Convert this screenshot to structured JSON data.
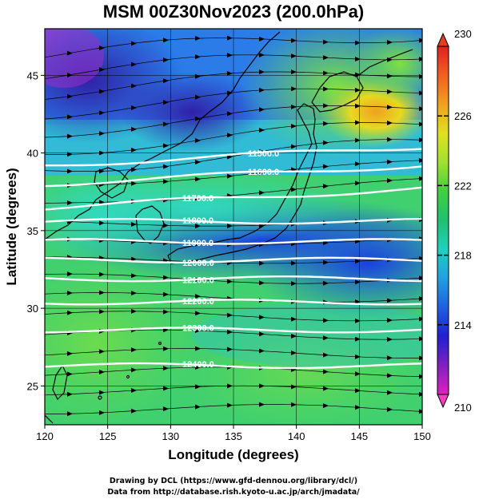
{
  "figure": {
    "title": "MSM 00Z30Nov2023 (200.0hPa)",
    "xlabel": "Longitude (degrees)",
    "ylabel": "Latitude  (degrees)",
    "credit_line1": "Drawing by DCL (https://www.gfd-dennou.org/library/dcl/)",
    "credit_line2": "Data from http://database.rish.kyoto-u.ac.jp/arch/jmadata/"
  },
  "map": {
    "lon_range": [
      120,
      150
    ],
    "lat_range": [
      22.5,
      48
    ],
    "lon_ticks": [
      "120",
      "125",
      "130",
      "135",
      "140",
      "145",
      "150"
    ],
    "lat_ticks": [
      "25",
      "30",
      "35",
      "40",
      "45"
    ],
    "grid": true,
    "field": "temperature (shaded)",
    "vectors": "wind streamlines (eastward)"
  },
  "colorbar": {
    "min": 210,
    "max": 230,
    "tick_labels": [
      "210",
      "214",
      "218",
      "222",
      "226",
      "230"
    ],
    "colors": [
      "#e020c0",
      "#8020c0",
      "#2020d0",
      "#2060e0",
      "#20a0e0",
      "#20d0c0",
      "#20c070",
      "#40d040",
      "#a0e030",
      "#e0e020",
      "#f0a020",
      "#f06020",
      "#e02020"
    ]
  },
  "contours": {
    "unit": "m",
    "lines": [
      {
        "label": "11500.0",
        "lat_at_135": 39.8
      },
      {
        "label": "11600.0",
        "lat_at_135": 38.6
      },
      {
        "label": "11700.0",
        "lat_at_135": 37.1
      },
      {
        "label": "11800.0",
        "lat_at_135": 35.6
      },
      {
        "label": "11900.0",
        "lat_at_135": 34.3
      },
      {
        "label": "12000.0",
        "lat_at_135": 33.1
      },
      {
        "label": "12100.0",
        "lat_at_135": 31.9
      },
      {
        "label": "12200.0",
        "lat_at_135": 30.4
      },
      {
        "label": "12300.0",
        "lat_at_135": 28.6
      },
      {
        "label": "12400.0",
        "lat_at_135": 26.3
      }
    ]
  }
}
